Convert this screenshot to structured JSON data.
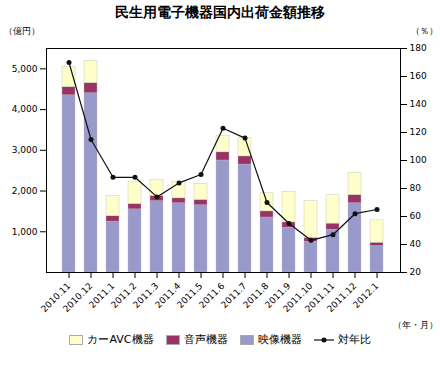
{
  "chart_data": {
    "type": "bar",
    "stacked": true,
    "title": "民生用電子機器国内出荷金額推移",
    "xlabel": "（年・月）",
    "ylabel": "（億円）",
    "y2label": "（％）",
    "categories": [
      "2010.11",
      "2010.12",
      "2011.1",
      "2011.2",
      "2011.3",
      "2011.4",
      "2011.5",
      "2011.6",
      "2011.7",
      "2011.8",
      "2011.9",
      "2011.10",
      "2011.11",
      "2011.12",
      "2012.1"
    ],
    "series": [
      {
        "name": "映像機器",
        "color": "#9999cc",
        "values": [
          4350,
          4400,
          1250,
          1550,
          1750,
          1700,
          1650,
          2750,
          2650,
          1350,
          1100,
          750,
          1050,
          1700,
          650
        ]
      },
      {
        "name": "音声機器",
        "color": "#993366",
        "values": [
          200,
          250,
          130,
          130,
          130,
          120,
          130,
          200,
          200,
          150,
          130,
          100,
          150,
          200,
          80
        ]
      },
      {
        "name": "カーAVC機器",
        "color": "#ffffcc",
        "values": [
          500,
          550,
          500,
          550,
          400,
          400,
          400,
          400,
          450,
          450,
          750,
          900,
          700,
          550,
          550
        ]
      },
      {
        "name": "対年比",
        "color": "#111111",
        "type": "line",
        "marker": "circle",
        "axis": "y2",
        "values": [
          170,
          115,
          88,
          88,
          74,
          84,
          90,
          123,
          116,
          70,
          55,
          43,
          47,
          62,
          65
        ]
      }
    ],
    "ylim": [
      0,
      5500
    ],
    "yticks": [
      {
        "value": 1000,
        "label": "1,000"
      },
      {
        "value": 2000,
        "label": "2,000"
      },
      {
        "value": 3000,
        "label": "3,000"
      },
      {
        "value": 4000,
        "label": "4,000"
      },
      {
        "value": 5000,
        "label": "5,000"
      }
    ],
    "y2lim": [
      20,
      180
    ],
    "y2ticks": [
      20,
      40,
      60,
      80,
      100,
      120,
      140,
      160,
      180
    ],
    "grid": false
  }
}
